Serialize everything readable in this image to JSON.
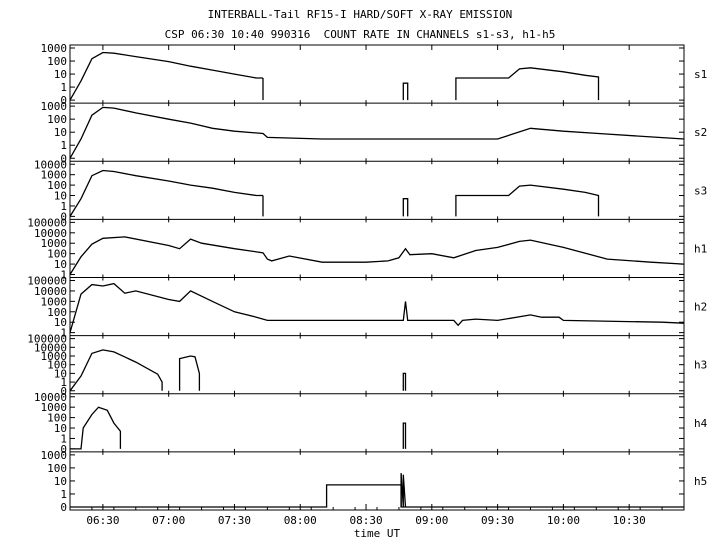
{
  "title": "INTERBALL-Tail RF15-I HARD/SOFT X-RAY EMISSION",
  "subtitle": "CSP 06:30 10:40 990316  COUNT RATE IN CHANNELS s1-s3, h1-h5",
  "chart_data": {
    "type": "line",
    "title": "INTERBALL-Tail RF15-I HARD/SOFT X-RAY EMISSION",
    "subtitle": "CSP 06:30 10:40 990316  COUNT RATE IN CHANNELS s1-s3, h1-h5",
    "xlabel": "time UT",
    "x_range": [
      "06:15",
      "10:55"
    ],
    "x_ticks": [
      "06:30",
      "07:00",
      "07:30",
      "08:00",
      "08:30",
      "09:00",
      "09:30",
      "10:00",
      "10:30"
    ],
    "y_scale": "log",
    "grid": false,
    "panels": [
      {
        "name": "s1",
        "y_ticks": [
          "1000",
          "100",
          "10",
          "1",
          "0"
        ],
        "series": [
          {
            "x": [
              "06:15",
              "06:20",
              "06:25",
              "06:30",
              "06:35",
              "06:45",
              "07:00",
              "07:10",
              "07:20",
              "07:30",
              "07:40",
              "07:43"
            ],
            "y": [
              0,
              3,
              150,
              450,
              400,
              220,
              90,
              40,
              20,
              10,
              5,
              5
            ]
          },
          {
            "x": [
              "07:43",
              "07:43"
            ],
            "y": [
              5,
              0
            ]
          },
          {
            "x": [
              "08:47",
              "08:47",
              "08:49",
              "08:49"
            ],
            "y": [
              0,
              2,
              2,
              0
            ]
          },
          {
            "x": [
              "09:11",
              "09:11",
              "09:20",
              "09:35",
              "09:40",
              "09:45",
              "10:00",
              "10:10",
              "10:16",
              "10:16"
            ],
            "y": [
              0,
              5,
              5,
              5,
              25,
              30,
              15,
              8,
              6,
              0
            ]
          }
        ]
      },
      {
        "name": "s2",
        "y_ticks": [
          "1000",
          "100",
          "10",
          "1",
          "0"
        ],
        "series": [
          {
            "x": [
              "06:15",
              "06:20",
              "06:25",
              "06:30",
              "06:35",
              "06:45",
              "07:00",
              "07:10",
              "07:20",
              "07:30",
              "07:43",
              "07:45",
              "08:10",
              "08:30",
              "08:47",
              "09:00",
              "09:30",
              "09:45",
              "10:00",
              "10:16",
              "10:55"
            ],
            "y": [
              0,
              3,
              200,
              800,
              700,
              300,
              100,
              50,
              20,
              12,
              8,
              4,
              3,
              3,
              3,
              3,
              3,
              20,
              12,
              8,
              3
            ]
          }
        ]
      },
      {
        "name": "s3",
        "y_ticks": [
          "10000",
          "1000",
          "100",
          "10",
          "1",
          "0"
        ],
        "series": [
          {
            "x": [
              "06:15",
              "06:20",
              "06:25",
              "06:30",
              "06:35",
              "06:45",
              "07:00",
              "07:10",
              "07:20",
              "07:30",
              "07:40",
              "07:43"
            ],
            "y": [
              0,
              5,
              800,
              2500,
              2000,
              800,
              250,
              100,
              50,
              20,
              10,
              10
            ]
          },
          {
            "x": [
              "07:43",
              "07:43"
            ],
            "y": [
              10,
              0
            ]
          },
          {
            "x": [
              "08:47",
              "08:47",
              "08:49",
              "08:49"
            ],
            "y": [
              0,
              5,
              5,
              0
            ]
          },
          {
            "x": [
              "09:11",
              "09:11",
              "09:20",
              "09:35",
              "09:40",
              "09:45",
              "10:00",
              "10:10",
              "10:16",
              "10:16"
            ],
            "y": [
              0,
              10,
              10,
              10,
              80,
              100,
              40,
              20,
              10,
              0
            ]
          }
        ]
      },
      {
        "name": "h1",
        "y_ticks": [
          "100000",
          "10000",
          "1000",
          "100",
          "10",
          "1"
        ],
        "series": [
          {
            "x": [
              "06:15",
              "06:20",
              "06:25",
              "06:30",
              "06:40",
              "07:00",
              "07:05",
              "07:10",
              "07:15",
              "07:30",
              "07:43",
              "07:45",
              "07:47",
              "07:55",
              "08:10",
              "08:30",
              "08:40",
              "08:45",
              "08:48",
              "08:50",
              "09:00",
              "09:10",
              "09:20",
              "09:30",
              "09:40",
              "09:45",
              "10:00",
              "10:20",
              "10:40",
              "10:55"
            ],
            "y": [
              1,
              50,
              800,
              3000,
              4000,
              600,
              300,
              2500,
              1000,
              300,
              120,
              30,
              20,
              60,
              15,
              15,
              20,
              40,
              300,
              80,
              100,
              40,
              200,
              400,
              1500,
              2000,
              400,
              30,
              15,
              10
            ]
          }
        ]
      },
      {
        "name": "h2",
        "y_ticks": [
          "100000",
          "10000",
          "1000",
          "100",
          "10",
          "1"
        ],
        "series": [
          {
            "x": [
              "06:15",
              "06:20",
              "06:25",
              "06:30",
              "06:35",
              "06:40",
              "06:45",
              "07:00",
              "07:05",
              "07:10",
              "07:20",
              "07:30",
              "07:40",
              "07:45",
              "08:20",
              "08:47",
              "08:48",
              "08:49",
              "08:55",
              "09:10",
              "09:12",
              "09:14",
              "09:20",
              "09:30",
              "09:45",
              "09:50",
              "09:58",
              "10:00",
              "10:45",
              "10:55"
            ],
            "y": [
              1,
              5000,
              40000,
              30000,
              50000,
              6000,
              10000,
              1500,
              1000,
              10000,
              1000,
              100,
              30,
              15,
              15,
              15,
              1000,
              15,
              15,
              15,
              5,
              15,
              20,
              15,
              50,
              30,
              30,
              15,
              10,
              8
            ]
          }
        ]
      },
      {
        "name": "h3",
        "y_ticks": [
          "100000",
          "10000",
          "1000",
          "100",
          "10",
          "1",
          "0"
        ],
        "series": [
          {
            "x": [
              "06:15",
              "06:20",
              "06:25",
              "06:30",
              "06:35",
              "06:45",
              "06:55",
              "06:57",
              "06:57"
            ],
            "y": [
              0,
              5,
              2000,
              5000,
              3000,
              200,
              8,
              1,
              0
            ]
          },
          {
            "x": [
              "07:05",
              "07:05",
              "07:10",
              "07:12",
              "07:14",
              "07:14"
            ],
            "y": [
              0,
              500,
              1000,
              800,
              10,
              0
            ]
          },
          {
            "x": [
              "08:47",
              "08:47",
              "08:48",
              "08:48"
            ],
            "y": [
              0,
              10,
              10,
              0
            ]
          }
        ]
      },
      {
        "name": "h4",
        "y_ticks": [
          "10000",
          "1000",
          "100",
          "10",
          "1",
          "0"
        ],
        "series": [
          {
            "x": [
              "06:15",
              "06:20",
              "06:21",
              "06:25",
              "06:28",
              "06:32",
              "06:35",
              "06:38",
              "06:38"
            ],
            "y": [
              0,
              0,
              10,
              200,
              1000,
              500,
              30,
              5,
              0
            ]
          },
          {
            "x": [
              "08:47",
              "08:47",
              "08:48",
              "08:48"
            ],
            "y": [
              0,
              30,
              30,
              0
            ]
          }
        ]
      },
      {
        "name": "h5",
        "y_ticks": [
          "1000",
          "100",
          "10",
          "1",
          "0"
        ],
        "series": [
          {
            "x": [
              "06:15",
              "08:12",
              "08:12",
              "08:46",
              "08:46",
              "08:49",
              "08:49",
              "10:55"
            ],
            "y": [
              0,
              0,
              5,
              5,
              0,
              0,
              0,
              0
            ]
          },
          {
            "x": [
              "08:46",
              "08:46",
              "08:47",
              "08:47",
              "08:48",
              "08:48"
            ],
            "y": [
              0,
              40,
              0,
              30,
              0,
              0
            ]
          }
        ]
      }
    ]
  }
}
